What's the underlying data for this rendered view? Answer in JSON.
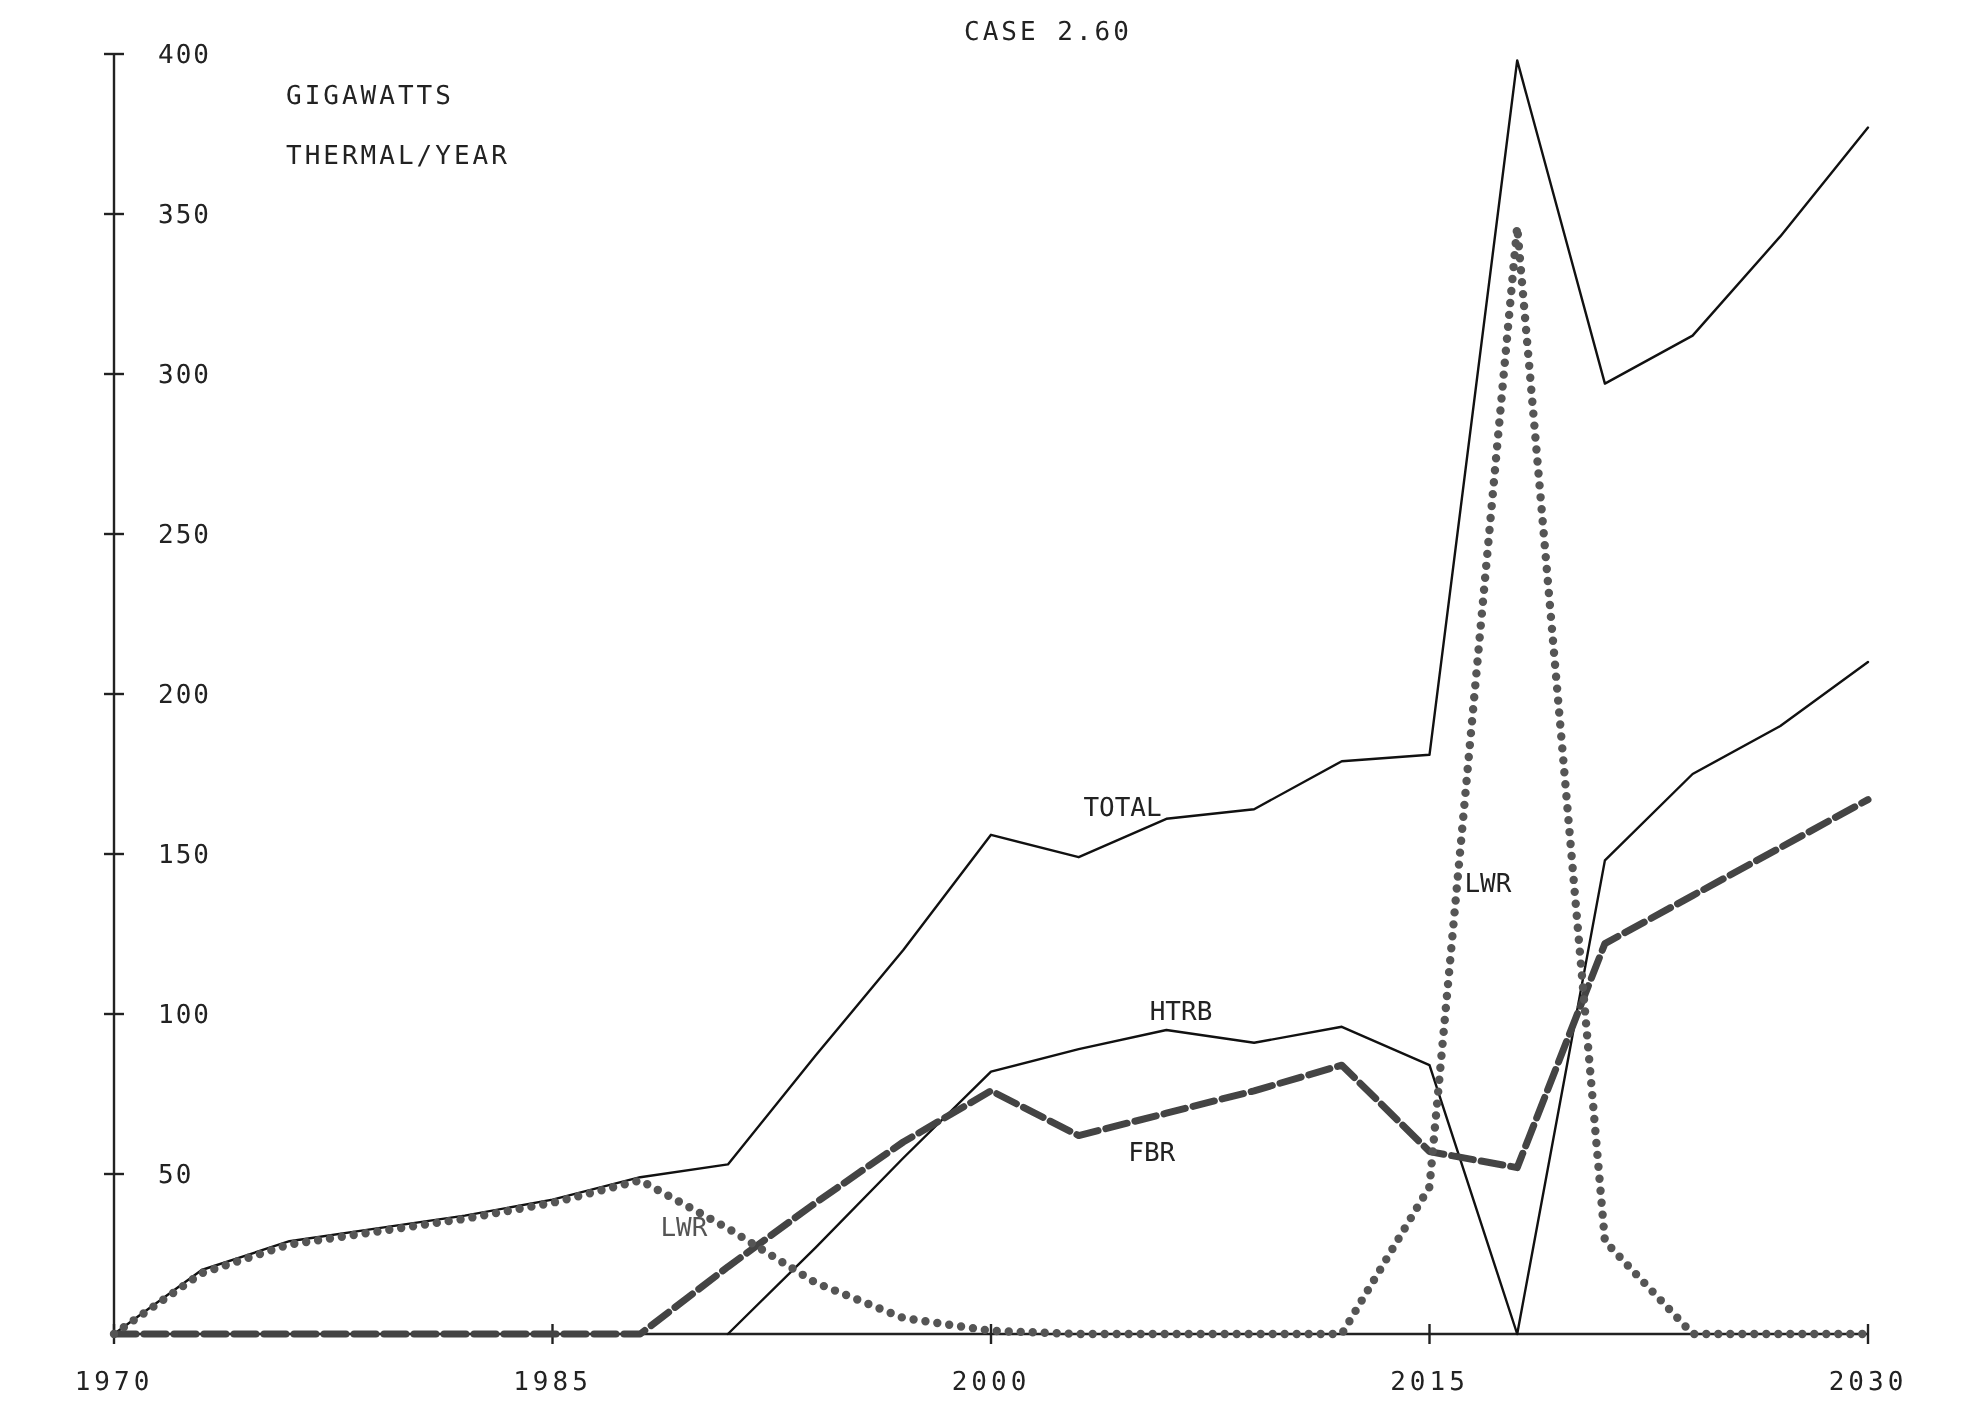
{
  "chart_data": {
    "type": "line",
    "title": "CASE 2.60",
    "ylabel": "GIGAWATTS THERMAL/YEAR",
    "x": [
      1970,
      1973,
      1976,
      1979,
      1982,
      1985,
      1988,
      1991,
      1994,
      1997,
      2000,
      2003,
      2006,
      2009,
      2012,
      2015,
      2018,
      2021,
      2024,
      2027,
      2030
    ],
    "xlim": [
      1970,
      2030
    ],
    "xticks": [
      1970,
      1985,
      2000,
      2015,
      2030
    ],
    "ylim": [
      0,
      400
    ],
    "yticks": [
      50,
      100,
      150,
      200,
      250,
      300,
      350,
      400
    ],
    "grid": false,
    "marker": "none",
    "series": [
      {
        "name": "TOTAL",
        "color": "#111111",
        "line_style": "solid",
        "values": [
          0,
          20,
          29,
          33,
          37,
          42,
          49,
          53,
          87,
          120,
          156,
          149,
          161,
          164,
          179,
          181,
          398,
          297,
          312,
          343,
          377
        ]
      },
      {
        "name": "HTRB",
        "color": "#111111",
        "line_style": "solid",
        "values": [
          null,
          null,
          null,
          null,
          null,
          null,
          null,
          0,
          27,
          55,
          82,
          89,
          95,
          91,
          96,
          84,
          0,
          148,
          175,
          190,
          210
        ]
      },
      {
        "name": "FBR",
        "color": "#444444",
        "line_style": "dashed",
        "values": [
          0,
          0,
          0,
          0,
          0,
          0,
          0,
          21,
          41,
          60,
          76,
          62,
          69,
          76,
          84,
          57,
          52,
          122,
          137,
          152,
          167
        ]
      },
      {
        "name": "LWR",
        "color": "#555555",
        "line_style": "dotted",
        "values": [
          0,
          19,
          28,
          32,
          36,
          41,
          48,
          33,
          16,
          5,
          1,
          0,
          0,
          0,
          0,
          46,
          346,
          29,
          0,
          0,
          0
        ]
      }
    ],
    "annotations": [
      {
        "text": "LWR",
        "x": 1991,
        "y": 33
      }
    ]
  }
}
